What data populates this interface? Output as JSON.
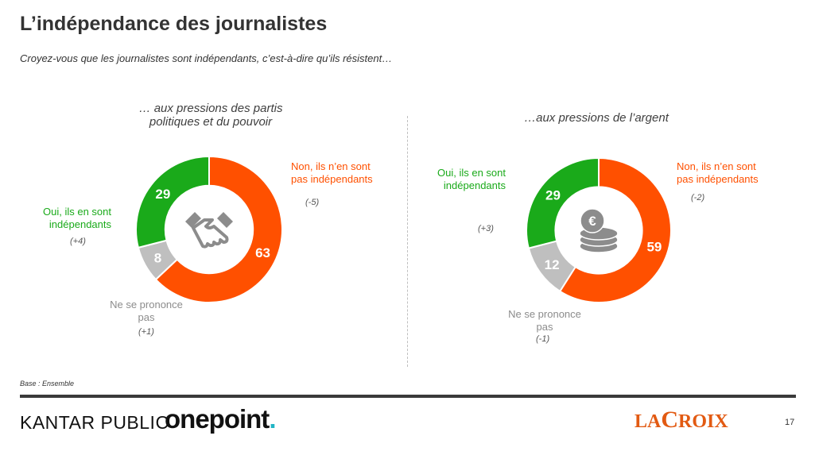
{
  "title": "L’indépendance des journalistes",
  "subtitle": "Croyez-vous que les journalistes sont indépendants, c’est-à-dire qu’ils résistent…",
  "base_note": "Base : Ensemble",
  "page_number": "17",
  "logos": {
    "kantar": "KANTAR PUBLIC",
    "onepoint": "onepoint",
    "onepoint_dot": ".",
    "lacroix": "LA CROIX"
  },
  "colors": {
    "yes": "#1aaa1a",
    "no": "#ff5000",
    "na": "#bfbfbf",
    "center_icon": "#8c8c8c"
  },
  "chart_data": [
    {
      "type": "donut",
      "title": "… aux pressions des partis politiques et du pouvoir",
      "center_icon": "handshake-icon",
      "series": [
        {
          "label": "Non, ils n’en sont pas indépendants",
          "value": 63,
          "change": "(-5)"
        },
        {
          "label": "Ne se prononce pas",
          "value": 8,
          "change": "(+1)"
        },
        {
          "label": "Oui, ils en sont indépendants",
          "value": 29,
          "change": "(+4)"
        }
      ]
    },
    {
      "type": "donut",
      "title": "…aux pressions de l’argent",
      "center_icon": "euro-coins-icon",
      "series": [
        {
          "label": "Non, ils n’en sont pas indépendants",
          "value": 59,
          "change": "(-2)"
        },
        {
          "label": "Ne se prononce pas",
          "value": 12,
          "change": "(-1)"
        },
        {
          "label": "Oui, ils en sont indépendants",
          "value": 29,
          "change": "(+3)"
        }
      ]
    }
  ]
}
